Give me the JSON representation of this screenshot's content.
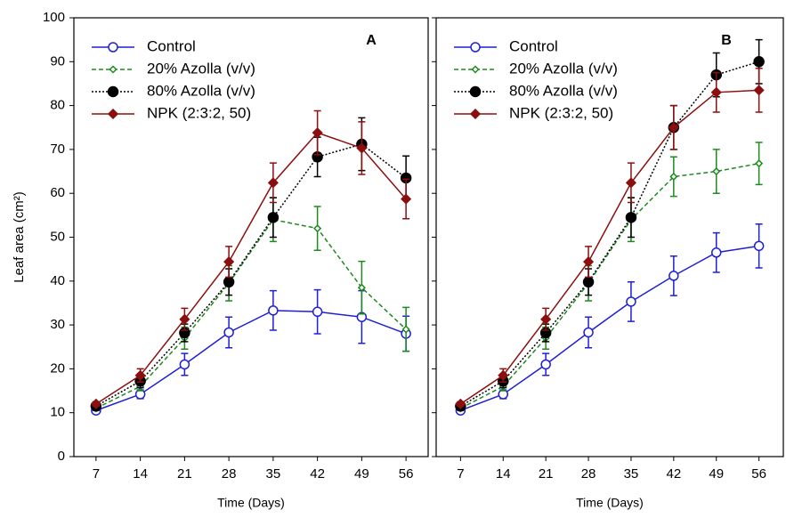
{
  "chart_data": [
    {
      "type": "line",
      "panel_label": "A",
      "x_label": "Time (Days)",
      "y_label": "Leaf area (cm²)",
      "x": [
        7,
        14,
        21,
        28,
        35,
        42,
        49,
        56
      ],
      "xlim": [
        3.5,
        59.5
      ],
      "xticks": [
        7,
        14,
        21,
        28,
        35,
        42,
        49,
        56
      ],
      "ylim": [
        0,
        100
      ],
      "yticks": [
        0,
        10,
        20,
        30,
        40,
        50,
        60,
        70,
        80,
        90,
        100
      ],
      "series": [
        {
          "name": "Control",
          "color": "#1f1fd6",
          "dash": "solid",
          "marker": "open-circle",
          "values": [
            10.5,
            14.2,
            21,
            28.3,
            33.3,
            33,
            31.8,
            28
          ],
          "errors": [
            0.5,
            1,
            2.5,
            3.5,
            4.5,
            5,
            6,
            4
          ]
        },
        {
          "name": "20% Azolla (v/v)",
          "color": "#1e8a1e",
          "dash": "dashed",
          "marker": "open-diamond",
          "values": [
            11,
            16,
            27,
            39.5,
            54,
            52,
            38.5,
            29
          ],
          "errors": [
            0.5,
            1,
            2.5,
            4,
            5,
            5,
            6,
            5
          ]
        },
        {
          "name": "80% Azolla (v/v)",
          "color": "#000000",
          "dash": "dotted",
          "marker": "filled-circle",
          "values": [
            11.5,
            17.2,
            28.2,
            39.8,
            54.5,
            68.3,
            71.2,
            63.5
          ],
          "errors": [
            0.5,
            1.5,
            2,
            3,
            4.5,
            4.5,
            6,
            5
          ]
        },
        {
          "name": "NPK (2:3:2, 50)",
          "color": "#8b0f0f",
          "dash": "solid",
          "marker": "filled-diamond",
          "values": [
            12,
            18.5,
            31.3,
            44.4,
            62.4,
            73.8,
            70.3,
            58.7
          ],
          "errors": [
            0.5,
            1.5,
            2.5,
            3.5,
            4.5,
            5,
            6,
            4.5
          ]
        }
      ]
    },
    {
      "type": "line",
      "panel_label": "B",
      "x_label": "Time (Days)",
      "x": [
        7,
        14,
        21,
        28,
        35,
        42,
        49,
        56
      ],
      "xlim": [
        3,
        60
      ],
      "xticks": [
        7,
        14,
        21,
        28,
        35,
        42,
        49,
        56
      ],
      "ylim": [
        0,
        100
      ],
      "yticks": [
        0,
        10,
        20,
        30,
        40,
        50,
        60,
        70,
        80,
        90,
        100
      ],
      "ytick_labels": false,
      "series": [
        {
          "name": "Control",
          "color": "#1f1fd6",
          "dash": "solid",
          "marker": "open-circle",
          "values": [
            10.5,
            14.2,
            21,
            28.3,
            35.3,
            41.2,
            46.5,
            48
          ],
          "errors": [
            0.5,
            1,
            2.5,
            3.5,
            4.5,
            4.5,
            4.5,
            5
          ]
        },
        {
          "name": "20% Azolla (v/v)",
          "color": "#1e8a1e",
          "dash": "dashed",
          "marker": "open-diamond",
          "values": [
            11,
            16,
            27,
            39.5,
            54,
            63.8,
            65,
            66.8
          ],
          "errors": [
            0.5,
            1,
            2.5,
            4,
            5,
            4.5,
            5,
            4.8
          ]
        },
        {
          "name": "80% Azolla (v/v)",
          "color": "#000000",
          "dash": "dotted",
          "marker": "filled-circle",
          "values": [
            11.5,
            17.2,
            28.2,
            39.8,
            54.5,
            75,
            87,
            90
          ],
          "errors": [
            0.5,
            1.5,
            2,
            3,
            4.5,
            5,
            5,
            5
          ]
        },
        {
          "name": "NPK (2:3:2, 50)",
          "color": "#8b0f0f",
          "dash": "solid",
          "marker": "filled-diamond",
          "values": [
            12,
            18.5,
            31.3,
            44.4,
            62.4,
            75,
            83,
            83.5
          ],
          "errors": [
            0.5,
            1.5,
            2.5,
            3.5,
            4.5,
            5,
            4.5,
            5
          ]
        }
      ]
    }
  ]
}
